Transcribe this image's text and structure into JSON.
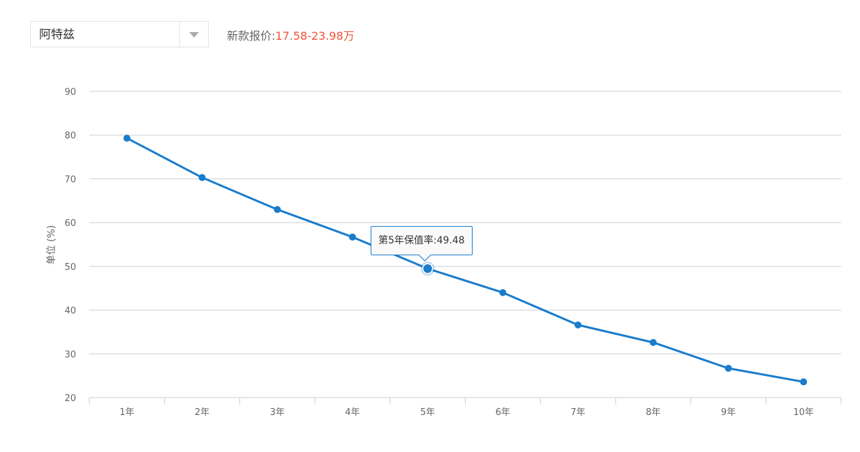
{
  "selector": {
    "selected_model": "阿特兹",
    "arrow_icon": "chevron-down-icon"
  },
  "price": {
    "label": "新款报价:",
    "range": "17.58-23.98万"
  },
  "colors": {
    "line": "#1a7ccc",
    "price_range": "#f0523a",
    "grid": "#c9ced6"
  },
  "tooltip": {
    "label": "第5年保值率:",
    "value": "49.48"
  },
  "chart_data": {
    "type": "line",
    "ylabel": "单位 (%)",
    "xlabel": "",
    "title": "",
    "ylim": [
      20,
      90
    ],
    "yticks": [
      20,
      30,
      40,
      50,
      60,
      70,
      80,
      90
    ],
    "grid": true,
    "categories": [
      "1年",
      "2年",
      "3年",
      "4年",
      "5年",
      "6年",
      "7年",
      "8年",
      "9年",
      "10年"
    ],
    "series": [
      {
        "values": [
          79.3,
          70.3,
          63.0,
          56.7,
          49.48,
          44.0,
          36.6,
          32.6,
          26.7,
          23.6
        ]
      }
    ],
    "highlight_index": 4
  }
}
